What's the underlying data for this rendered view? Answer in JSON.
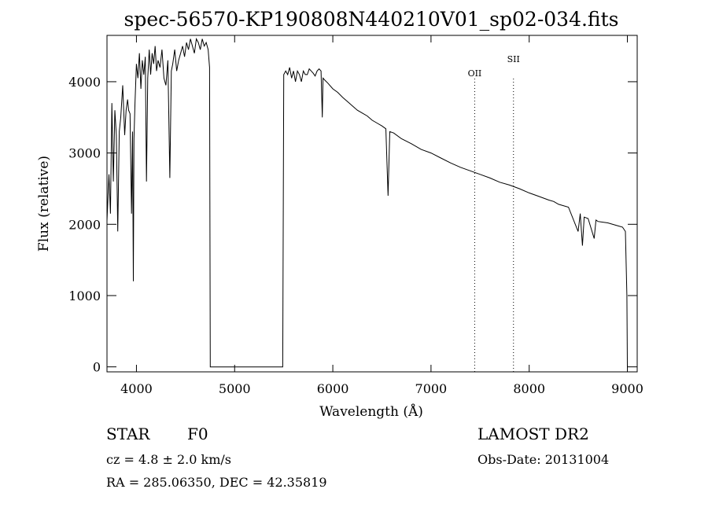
{
  "chart_data": {
    "type": "line",
    "title": "spec-56570-KP190808N440210V01_sp02-034.fits",
    "xlabel": "Wavelength (Å)",
    "ylabel": "Flux (relative)",
    "xlim": [
      3700,
      9100
    ],
    "ylim": [
      -70,
      4650
    ],
    "xticks": [
      4000,
      5000,
      6000,
      7000,
      8000,
      9000
    ],
    "yticks": [
      0,
      1000,
      2000,
      3000,
      4000
    ],
    "grid": false,
    "series": [
      {
        "points": [
          [
            3700,
            2050
          ],
          [
            3720,
            2700
          ],
          [
            3735,
            2150
          ],
          [
            3750,
            3700
          ],
          [
            3765,
            2600
          ],
          [
            3780,
            3600
          ],
          [
            3795,
            3250
          ],
          [
            3810,
            1900
          ],
          [
            3825,
            3300
          ],
          [
            3840,
            3500
          ],
          [
            3860,
            3950
          ],
          [
            3880,
            3250
          ],
          [
            3895,
            3600
          ],
          [
            3910,
            3750
          ],
          [
            3920,
            3600
          ],
          [
            3935,
            3550
          ],
          [
            3950,
            2150
          ],
          [
            3960,
            3300
          ],
          [
            3968,
            1200
          ],
          [
            3975,
            3200
          ],
          [
            3985,
            3700
          ],
          [
            4000,
            4250
          ],
          [
            4015,
            4050
          ],
          [
            4030,
            4400
          ],
          [
            4045,
            3900
          ],
          [
            4060,
            4300
          ],
          [
            4075,
            4100
          ],
          [
            4090,
            4350
          ],
          [
            4102,
            2600
          ],
          [
            4115,
            4050
          ],
          [
            4130,
            4450
          ],
          [
            4145,
            4100
          ],
          [
            4160,
            4400
          ],
          [
            4175,
            4250
          ],
          [
            4190,
            4500
          ],
          [
            4205,
            4150
          ],
          [
            4220,
            4300
          ],
          [
            4240,
            4200
          ],
          [
            4260,
            4450
          ],
          [
            4280,
            4050
          ],
          [
            4300,
            3950
          ],
          [
            4320,
            4300
          ],
          [
            4340,
            2650
          ],
          [
            4355,
            4150
          ],
          [
            4370,
            4250
          ],
          [
            4390,
            4450
          ],
          [
            4410,
            4150
          ],
          [
            4430,
            4300
          ],
          [
            4450,
            4400
          ],
          [
            4470,
            4500
          ],
          [
            4490,
            4350
          ],
          [
            4510,
            4550
          ],
          [
            4530,
            4450
          ],
          [
            4550,
            4600
          ],
          [
            4570,
            4500
          ],
          [
            4590,
            4400
          ],
          [
            4610,
            4600
          ],
          [
            4630,
            4550
          ],
          [
            4650,
            4450
          ],
          [
            4670,
            4600
          ],
          [
            4690,
            4500
          ],
          [
            4710,
            4550
          ],
          [
            4730,
            4450
          ],
          [
            4745,
            4200
          ],
          [
            4752,
            0
          ],
          [
            5490,
            0
          ],
          [
            5500,
            4100
          ],
          [
            5520,
            4150
          ],
          [
            5540,
            4100
          ],
          [
            5560,
            4200
          ],
          [
            5580,
            4050
          ],
          [
            5600,
            4150
          ],
          [
            5620,
            4000
          ],
          [
            5640,
            4150
          ],
          [
            5660,
            4100
          ],
          [
            5680,
            4000
          ],
          [
            5700,
            4150
          ],
          [
            5720,
            4100
          ],
          [
            5740,
            4100
          ],
          [
            5760,
            4180
          ],
          [
            5780,
            4150
          ],
          [
            5800,
            4120
          ],
          [
            5820,
            4080
          ],
          [
            5840,
            4150
          ],
          [
            5860,
            4180
          ],
          [
            5880,
            4150
          ],
          [
            5893,
            3500
          ],
          [
            5900,
            4050
          ],
          [
            5920,
            4020
          ],
          [
            5950,
            3980
          ],
          [
            6000,
            3900
          ],
          [
            6050,
            3850
          ],
          [
            6100,
            3780
          ],
          [
            6150,
            3720
          ],
          [
            6200,
            3660
          ],
          [
            6250,
            3600
          ],
          [
            6300,
            3560
          ],
          [
            6350,
            3520
          ],
          [
            6400,
            3460
          ],
          [
            6450,
            3420
          ],
          [
            6500,
            3380
          ],
          [
            6540,
            3340
          ],
          [
            6563,
            2400
          ],
          [
            6580,
            3300
          ],
          [
            6620,
            3280
          ],
          [
            6700,
            3200
          ],
          [
            6800,
            3130
          ],
          [
            6900,
            3050
          ],
          [
            7000,
            3000
          ],
          [
            7100,
            2930
          ],
          [
            7200,
            2860
          ],
          [
            7300,
            2800
          ],
          [
            7400,
            2750
          ],
          [
            7500,
            2700
          ],
          [
            7600,
            2650
          ],
          [
            7700,
            2590
          ],
          [
            7800,
            2550
          ],
          [
            7900,
            2500
          ],
          [
            8000,
            2440
          ],
          [
            8100,
            2390
          ],
          [
            8200,
            2340
          ],
          [
            8250,
            2320
          ],
          [
            8300,
            2280
          ],
          [
            8400,
            2240
          ],
          [
            8498,
            1900
          ],
          [
            8520,
            2150
          ],
          [
            8542,
            1700
          ],
          [
            8560,
            2100
          ],
          [
            8600,
            2080
          ],
          [
            8662,
            1800
          ],
          [
            8680,
            2060
          ],
          [
            8700,
            2040
          ],
          [
            8800,
            2020
          ],
          [
            8900,
            1980
          ],
          [
            8950,
            1960
          ],
          [
            8980,
            1900
          ],
          [
            8995,
            1000
          ],
          [
            9000,
            0
          ]
        ]
      }
    ],
    "annotations": [
      {
        "label": "OII",
        "x": 7445
      },
      {
        "label": "SII",
        "x": 7840
      }
    ]
  },
  "info": {
    "class_label": "STAR",
    "subclass": "F0",
    "survey": "LAMOST DR2",
    "cz": "cz = 4.8 ± 2.0 km/s",
    "obs_date": "Obs-Date: 20131004",
    "coords": "RA = 285.06350, DEC =  42.35819"
  }
}
